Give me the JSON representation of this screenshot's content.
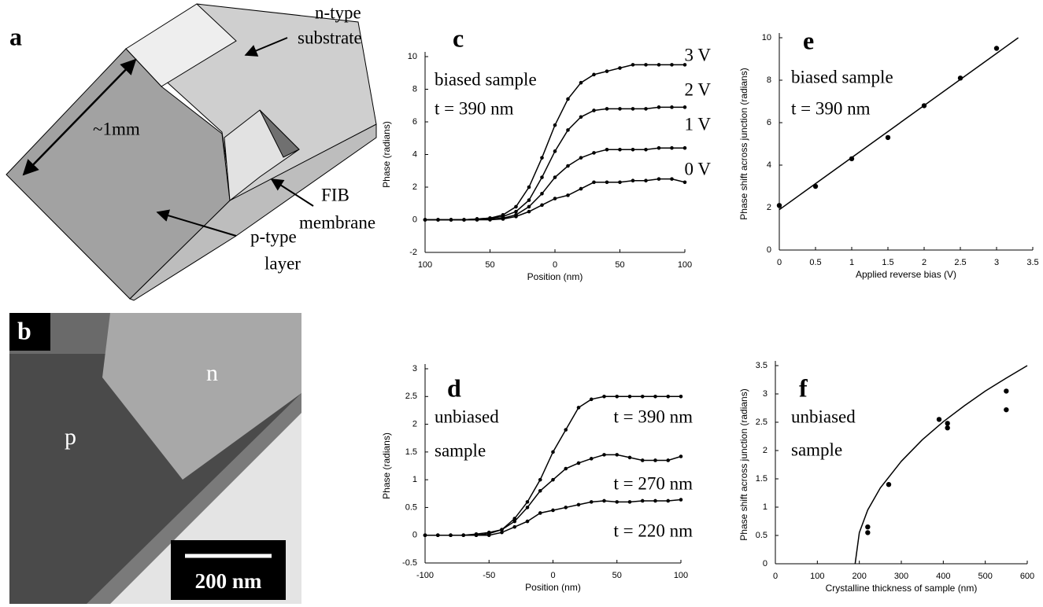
{
  "panels": [
    {
      "label": "a",
      "texts": [
        "n-type",
        "substrate",
        "~1mm",
        "FIB",
        "membrane",
        "p-type",
        "layer"
      ]
    },
    {
      "label": "b",
      "texts": [
        "n",
        "p",
        "200 nm"
      ]
    }
  ],
  "chart_data": [
    {
      "type": "line",
      "label": "c",
      "xlabel": "Position (nm)",
      "ylabel": "Phase (radians)",
      "annotations": [
        "biased sample",
        "t = 390 nm",
        "3 V",
        "2 V",
        "1 V",
        "0 V"
      ],
      "x": [
        -100,
        -90,
        -80,
        -70,
        -60,
        -50,
        -40,
        -30,
        -20,
        -10,
        0,
        10,
        20,
        30,
        40,
        50,
        60,
        70,
        80,
        90,
        100
      ],
      "series": [
        {
          "name": "3 V",
          "color": "#000000",
          "values": [
            0,
            0,
            0,
            0,
            0.05,
            0.1,
            0.3,
            0.8,
            2,
            3.8,
            5.8,
            7.4,
            8.4,
            8.9,
            9.1,
            9.3,
            9.5,
            9.5,
            9.5,
            9.5,
            9.5
          ]
        },
        {
          "name": "2 V",
          "color": "#000000",
          "values": [
            0,
            0,
            0,
            0,
            0.05,
            0.1,
            0.2,
            0.5,
            1.2,
            2.6,
            4.2,
            5.5,
            6.3,
            6.7,
            6.8,
            6.8,
            6.8,
            6.8,
            6.9,
            6.9,
            6.9
          ]
        },
        {
          "name": "1 V",
          "color": "#000000",
          "values": [
            0,
            0,
            0,
            0,
            0,
            0.05,
            0.1,
            0.3,
            0.8,
            1.6,
            2.6,
            3.3,
            3.8,
            4.1,
            4.3,
            4.3,
            4.3,
            4.3,
            4.4,
            4.4,
            4.4
          ]
        },
        {
          "name": "0 V",
          "color": "#000000",
          "values": [
            0,
            0,
            0,
            0,
            0,
            0,
            0.05,
            0.2,
            0.5,
            0.9,
            1.3,
            1.5,
            1.9,
            2.3,
            2.3,
            2.3,
            2.4,
            2.4,
            2.5,
            2.5,
            2.3
          ]
        }
      ],
      "xlim": [
        -100,
        100
      ],
      "xticks": [
        {
          "value": -100,
          "label": "100"
        },
        {
          "value": -50,
          "label": "50"
        },
        0,
        50,
        100
      ],
      "ylim": [
        -2,
        10
      ],
      "yticks": [
        -2,
        0,
        2,
        4,
        6,
        8,
        10
      ],
      "grid": false
    },
    {
      "type": "line",
      "label": "d",
      "xlabel": "Position (nm)",
      "ylabel": "Phase (radians)",
      "annotations": [
        "unbiased",
        "sample",
        "t = 390 nm",
        "t = 270 nm",
        "t = 220 nm"
      ],
      "x": [
        -100,
        -90,
        -80,
        -70,
        -60,
        -50,
        -40,
        -30,
        -20,
        -10,
        0,
        10,
        20,
        30,
        40,
        50,
        60,
        70,
        80,
        90,
        100
      ],
      "series": [
        {
          "name": "t = 390 nm",
          "color": "#000000",
          "values": [
            0,
            0,
            0,
            0,
            0.02,
            0.05,
            0.1,
            0.3,
            0.6,
            1.0,
            1.5,
            1.9,
            2.3,
            2.45,
            2.5,
            2.5,
            2.5,
            2.5,
            2.5,
            2.5,
            2.5
          ]
        },
        {
          "name": "t = 270 nm",
          "color": "#000000",
          "values": [
            0,
            0,
            0,
            0,
            0,
            0.03,
            0.1,
            0.25,
            0.5,
            0.8,
            1.0,
            1.2,
            1.3,
            1.38,
            1.45,
            1.45,
            1.4,
            1.35,
            1.35,
            1.35,
            1.42
          ]
        },
        {
          "name": "t = 220 nm",
          "color": "#000000",
          "values": [
            0,
            0,
            0,
            0,
            0,
            0,
            0.05,
            0.15,
            0.25,
            0.4,
            0.45,
            0.5,
            0.55,
            0.6,
            0.62,
            0.6,
            0.6,
            0.62,
            0.62,
            0.62,
            0.64
          ]
        }
      ],
      "xlim": [
        -100,
        100
      ],
      "xticks": [
        -100,
        -50,
        0,
        50,
        100
      ],
      "ylim": [
        -0.5,
        3
      ],
      "yticks": [
        -0.5,
        0,
        0.5,
        1,
        1.5,
        2,
        2.5,
        3
      ],
      "grid": false
    },
    {
      "type": "scatter",
      "label": "e",
      "xlabel": "Applied reverse bias (V)",
      "ylabel": "Phase shift across junction (radians)",
      "annotations": [
        "biased sample",
        "t = 390 nm"
      ],
      "series": [
        {
          "mode": "markers",
          "color": "#000000",
          "x": [
            0,
            0.5,
            1,
            1.5,
            2,
            2.5,
            3
          ],
          "values": [
            2.1,
            3.0,
            4.3,
            5.3,
            6.8,
            8.1,
            9.5
          ]
        },
        {
          "mode": "line",
          "color": "#000000",
          "x": [
            0,
            3.3
          ],
          "values": [
            1.9,
            10
          ]
        }
      ],
      "xlim": [
        0,
        3.5
      ],
      "xticks": [
        0,
        0.5,
        1,
        1.5,
        2,
        2.5,
        3,
        3.5
      ],
      "ylim": [
        0,
        10
      ],
      "yticks": [
        0,
        2,
        4,
        6,
        8,
        10
      ],
      "grid": false
    },
    {
      "type": "scatter",
      "label": "f",
      "xlabel": "Crystalline thickness of sample (nm)",
      "ylabel": "Phase shift across junction (radians)",
      "annotations": [
        "unbiased",
        "sample"
      ],
      "series": [
        {
          "mode": "markers",
          "color": "#000000",
          "x": [
            220,
            220,
            270,
            390,
            410,
            410,
            550,
            550
          ],
          "values": [
            0.55,
            0.65,
            1.4,
            2.55,
            2.4,
            2.48,
            3.05,
            2.72
          ]
        },
        {
          "mode": "line",
          "color": "#000000",
          "x": [
            190,
            200,
            220,
            250,
            300,
            350,
            400,
            450,
            500,
            550,
            600
          ],
          "values": [
            0,
            0.55,
            0.95,
            1.34,
            1.81,
            2.19,
            2.51,
            2.79,
            3.05,
            3.28,
            3.5
          ]
        }
      ],
      "xlim": [
        0,
        600
      ],
      "xticks": [
        0,
        100,
        200,
        300,
        400,
        500,
        600
      ],
      "ylim": [
        0,
        3.5
      ],
      "yticks": [
        0,
        0.5,
        1,
        1.5,
        2,
        2.5,
        3,
        3.5
      ],
      "grid": false
    }
  ]
}
